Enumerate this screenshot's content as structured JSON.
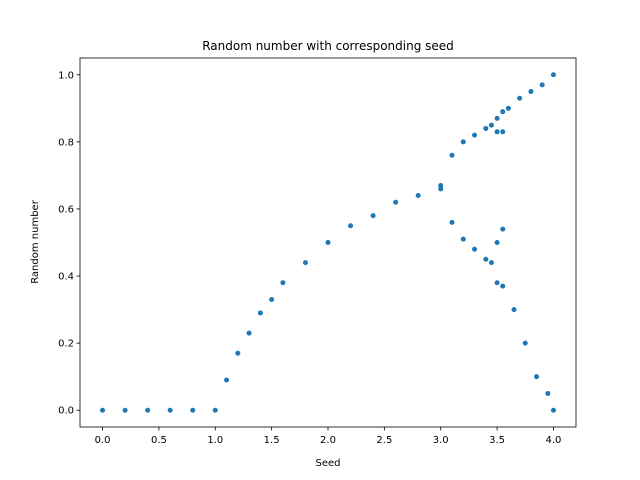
{
  "chart_data": {
    "type": "scatter",
    "title": "Random number with corresponding seed",
    "xlabel": "Seed",
    "ylabel": "Random number",
    "xlim": [
      -0.2,
      4.2
    ],
    "ylim": [
      -0.05,
      1.05
    ],
    "xticks": [
      0.0,
      0.5,
      1.0,
      1.5,
      2.0,
      2.5,
      3.0,
      3.5,
      4.0
    ],
    "xtick_labels": [
      "0.0",
      "0.5",
      "1.0",
      "1.5",
      "2.0",
      "2.5",
      "3.0",
      "3.5",
      "4.0"
    ],
    "yticks": [
      0.0,
      0.2,
      0.4,
      0.6,
      0.8,
      1.0
    ],
    "ytick_labels": [
      "0.0",
      "0.2",
      "0.4",
      "0.6",
      "0.8",
      "1.0"
    ],
    "grid": false,
    "marker_color": "#1f77b4",
    "series": [
      {
        "x": [
          0.0,
          0.2,
          0.4,
          0.6,
          0.8,
          1.0,
          1.1,
          1.2,
          1.3,
          1.4,
          1.5,
          1.6,
          1.8,
          2.0,
          2.2,
          2.4,
          2.6,
          2.8,
          3.0,
          3.0,
          3.1,
          3.1,
          3.2,
          3.2,
          3.3,
          3.3,
          3.4,
          3.4,
          3.45,
          3.45,
          3.5,
          3.5,
          3.5,
          3.5,
          3.55,
          3.55,
          3.55,
          3.55,
          3.6,
          3.65,
          3.7,
          3.75,
          3.8,
          3.85,
          3.9,
          3.95,
          4.0,
          4.0
        ],
        "y": [
          0.0,
          0.0,
          0.0,
          0.0,
          0.0,
          0.0,
          0.09,
          0.17,
          0.23,
          0.29,
          0.33,
          0.38,
          0.44,
          0.5,
          0.55,
          0.58,
          0.62,
          0.64,
          0.66,
          0.67,
          0.76,
          0.56,
          0.8,
          0.51,
          0.82,
          0.48,
          0.84,
          0.45,
          0.85,
          0.44,
          0.87,
          0.83,
          0.5,
          0.38,
          0.89,
          0.83,
          0.54,
          0.37,
          0.9,
          0.3,
          0.93,
          0.2,
          0.95,
          0.1,
          0.97,
          0.05,
          1.0,
          0.0
        ]
      }
    ]
  }
}
